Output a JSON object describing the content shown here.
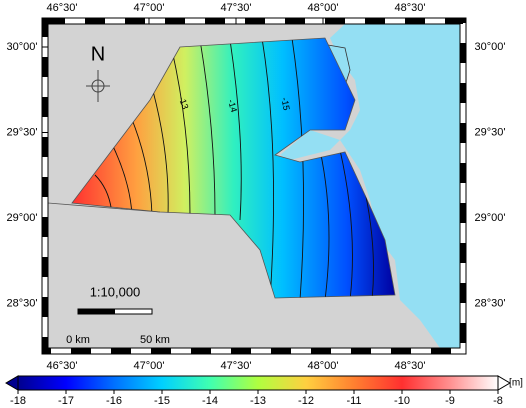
{
  "map": {
    "lon_ticks": [
      {
        "value": 46.5,
        "label": "46°30'"
      },
      {
        "value": 47,
        "label": "47°00'"
      },
      {
        "value": 47.5,
        "label": "47°30'"
      },
      {
        "value": 48,
        "label": "48°00'"
      },
      {
        "value": 48.5,
        "label": "48°30'"
      }
    ],
    "lat_ticks": [
      {
        "value": 30,
        "label": "30°00'"
      },
      {
        "value": 29.5,
        "label": "29°30'"
      },
      {
        "value": 29,
        "label": "29°00'"
      },
      {
        "value": 28.5,
        "label": "28°30'"
      }
    ],
    "north": "N",
    "scale": "1:10,000",
    "scale_start": "0 km",
    "scale_end": "50 km",
    "contours": [
      -13,
      -14,
      -15
    ]
  },
  "colorbar": {
    "lim": [
      -18,
      -8
    ],
    "ticks": [
      -18,
      -17,
      -16,
      -15,
      -14,
      -13,
      -12,
      -11,
      -10,
      -9,
      -8
    ],
    "unit": "[m]"
  }
}
